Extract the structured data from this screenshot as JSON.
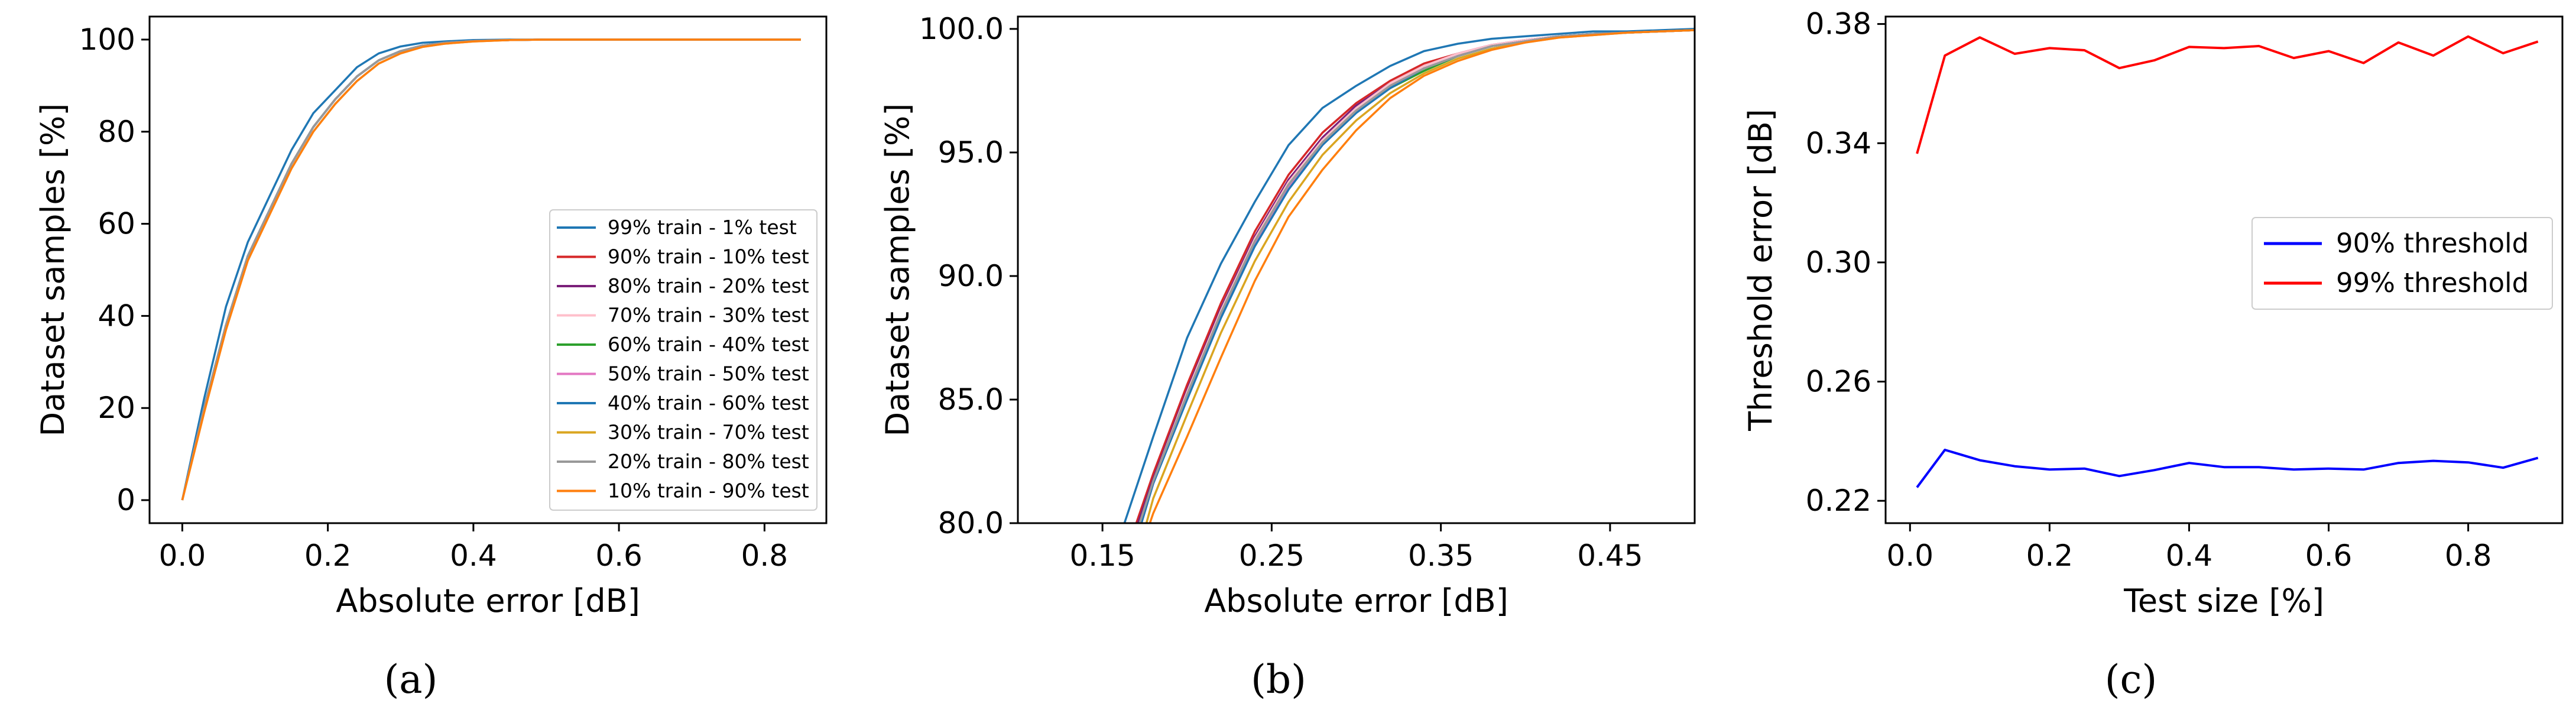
{
  "chart_data": [
    {
      "panel": "(a)",
      "type": "line",
      "xlabel": "Absolute error [dB]",
      "ylabel": "Dataset samples [%]",
      "xlim": [
        -0.045,
        0.885
      ],
      "ylim": [
        -5,
        105
      ],
      "xticks": [
        "0.0",
        "0.2",
        "0.4",
        "0.6",
        "0.8"
      ],
      "xtick_values": [
        0,
        0.2,
        0.4,
        0.6,
        0.8
      ],
      "yticks": [
        "0",
        "20",
        "40",
        "60",
        "80",
        "100"
      ],
      "ytick_values": [
        0,
        20,
        40,
        60,
        80,
        100
      ],
      "grid": false,
      "legend_position": "lower-right",
      "series": [
        {
          "name": "99% train - 1% test",
          "color": "#1f77b4",
          "x": [
            0,
            0.03,
            0.06,
            0.09,
            0.12,
            0.15,
            0.18,
            0.21,
            0.24,
            0.27,
            0.3,
            0.33,
            0.36,
            0.4,
            0.45,
            0.5,
            0.6,
            0.7,
            0.85
          ],
          "y": [
            0,
            22,
            42,
            56,
            66,
            76,
            84,
            89,
            94,
            97,
            98.5,
            99.3,
            99.6,
            99.9,
            100,
            100,
            100,
            100,
            100
          ]
        },
        {
          "name": "90% train - 10% test",
          "color": "#d62728",
          "x": [
            0,
            0.03,
            0.06,
            0.09,
            0.12,
            0.15,
            0.18,
            0.21,
            0.24,
            0.27,
            0.3,
            0.33,
            0.36,
            0.4,
            0.45,
            0.5,
            0.6,
            0.7,
            0.85
          ],
          "y": [
            0,
            20,
            38,
            53,
            63,
            73,
            81,
            87,
            92,
            95.5,
            97.5,
            98.7,
            99.3,
            99.7,
            99.9,
            100,
            100,
            100,
            100
          ]
        },
        {
          "name": "80% train - 20% test",
          "color": "#7b1f7a",
          "x": [
            0,
            0.03,
            0.06,
            0.09,
            0.12,
            0.15,
            0.18,
            0.21,
            0.24,
            0.27,
            0.3,
            0.33,
            0.36,
            0.4,
            0.45,
            0.5,
            0.6,
            0.7,
            0.85
          ],
          "y": [
            0,
            20,
            38,
            53,
            63,
            73,
            81,
            87,
            92,
            95.5,
            97.5,
            98.7,
            99.3,
            99.7,
            99.9,
            100,
            100,
            100,
            100
          ]
        },
        {
          "name": "70% train - 30% test",
          "color": "#ffc0cb",
          "x": [
            0,
            0.03,
            0.06,
            0.09,
            0.12,
            0.15,
            0.18,
            0.21,
            0.24,
            0.27,
            0.3,
            0.33,
            0.36,
            0.4,
            0.45,
            0.5,
            0.6,
            0.7,
            0.85
          ],
          "y": [
            0,
            20,
            38,
            53,
            63,
            73,
            81,
            87,
            92,
            95.5,
            97.5,
            98.7,
            99.3,
            99.7,
            99.9,
            100,
            100,
            100,
            100
          ]
        },
        {
          "name": "60% train - 40% test",
          "color": "#2ca02c",
          "x": [
            0,
            0.03,
            0.06,
            0.09,
            0.12,
            0.15,
            0.18,
            0.21,
            0.24,
            0.27,
            0.3,
            0.33,
            0.36,
            0.4,
            0.45,
            0.5,
            0.6,
            0.7,
            0.85
          ],
          "y": [
            0,
            20,
            38,
            53,
            63,
            73,
            81,
            87,
            92,
            95.5,
            97.5,
            98.7,
            99.3,
            99.7,
            99.9,
            100,
            100,
            100,
            100
          ]
        },
        {
          "name": "50% train - 50% test",
          "color": "#e377c2",
          "x": [
            0,
            0.03,
            0.06,
            0.09,
            0.12,
            0.15,
            0.18,
            0.21,
            0.24,
            0.27,
            0.3,
            0.33,
            0.36,
            0.4,
            0.45,
            0.5,
            0.6,
            0.7,
            0.85
          ],
          "y": [
            0,
            20,
            38,
            53,
            63,
            73,
            81,
            87,
            92,
            95.5,
            97.5,
            98.7,
            99.3,
            99.7,
            99.9,
            100,
            100,
            100,
            100
          ]
        },
        {
          "name": "40% train - 60% test",
          "color": "#1f77b4",
          "x": [
            0,
            0.03,
            0.06,
            0.09,
            0.12,
            0.15,
            0.18,
            0.21,
            0.24,
            0.27,
            0.3,
            0.33,
            0.36,
            0.4,
            0.45,
            0.5,
            0.6,
            0.7,
            0.85
          ],
          "y": [
            0,
            20,
            38,
            53,
            63,
            73,
            81,
            87,
            92,
            95.5,
            97.5,
            98.7,
            99.3,
            99.7,
            99.9,
            100,
            100,
            100,
            100
          ]
        },
        {
          "name": "30% train - 70% test",
          "color": "#daa520",
          "x": [
            0,
            0.03,
            0.06,
            0.09,
            0.12,
            0.15,
            0.18,
            0.21,
            0.24,
            0.27,
            0.3,
            0.33,
            0.36,
            0.4,
            0.45,
            0.5,
            0.6,
            0.7,
            0.85
          ],
          "y": [
            0,
            19,
            37,
            52,
            62,
            72,
            80,
            86,
            91,
            94.8,
            97,
            98.4,
            99.1,
            99.6,
            99.9,
            100,
            100,
            100,
            100
          ]
        },
        {
          "name": "20% train - 80% test",
          "color": "#999999",
          "x": [
            0,
            0.03,
            0.06,
            0.09,
            0.12,
            0.15,
            0.18,
            0.21,
            0.24,
            0.27,
            0.3,
            0.33,
            0.36,
            0.4,
            0.45,
            0.5,
            0.6,
            0.7,
            0.85
          ],
          "y": [
            0,
            20,
            38,
            53,
            63,
            73,
            81,
            87,
            92,
            95.5,
            97.5,
            98.7,
            99.3,
            99.7,
            99.9,
            100,
            100,
            100,
            100
          ]
        },
        {
          "name": "10% train - 90% test",
          "color": "#ff7f0e",
          "x": [
            0,
            0.03,
            0.06,
            0.09,
            0.12,
            0.15,
            0.18,
            0.21,
            0.24,
            0.27,
            0.3,
            0.33,
            0.36,
            0.4,
            0.45,
            0.5,
            0.6,
            0.7,
            0.85
          ],
          "y": [
            0,
            19,
            37,
            52,
            62,
            72,
            80,
            86,
            91,
            94.8,
            97,
            98.4,
            99.1,
            99.6,
            99.9,
            100,
            100,
            100,
            100
          ]
        }
      ]
    },
    {
      "panel": "(b)",
      "type": "line",
      "xlabel": "Absolute error [dB]",
      "ylabel": "Dataset samples [%]",
      "xlim": [
        0.1,
        0.5
      ],
      "ylim": [
        80,
        100.5
      ],
      "xticks": [
        "0.15",
        "0.25",
        "0.35",
        "0.45"
      ],
      "xtick_values": [
        0.15,
        0.25,
        0.35,
        0.45
      ],
      "yticks": [
        "80.0",
        "85.0",
        "90.0",
        "95.0",
        "100.0"
      ],
      "ytick_values": [
        80,
        85,
        90,
        95,
        100
      ],
      "grid": false,
      "series": [
        {
          "name": "99% train - 1% test",
          "color": "#1f77b4",
          "x": [
            0.163,
            0.18,
            0.2,
            0.22,
            0.24,
            0.26,
            0.28,
            0.3,
            0.32,
            0.34,
            0.36,
            0.38,
            0.4,
            0.42,
            0.44,
            0.46,
            0.48,
            0.5
          ],
          "y": [
            80,
            83.5,
            87.5,
            90.5,
            93,
            95.3,
            96.8,
            97.7,
            98.5,
            99.1,
            99.4,
            99.6,
            99.7,
            99.8,
            99.9,
            99.9,
            99.95,
            100
          ]
        },
        {
          "name": "90% train - 10% test",
          "color": "#d62728",
          "x": [
            0.17,
            0.18,
            0.2,
            0.22,
            0.24,
            0.26,
            0.28,
            0.3,
            0.32,
            0.34,
            0.36,
            0.38,
            0.4,
            0.42,
            0.44,
            0.46,
            0.48,
            0.5
          ],
          "y": [
            80,
            82,
            85.6,
            88.9,
            91.8,
            94.1,
            95.8,
            97,
            97.9,
            98.6,
            99,
            99.35,
            99.55,
            99.7,
            99.8,
            99.85,
            99.9,
            99.95
          ]
        },
        {
          "name": "80% train - 20% test",
          "color": "#7b1f7a",
          "x": [
            0.171,
            0.18,
            0.2,
            0.22,
            0.24,
            0.26,
            0.28,
            0.3,
            0.32,
            0.34,
            0.36,
            0.38,
            0.4,
            0.42,
            0.44,
            0.46,
            0.48,
            0.5
          ],
          "y": [
            80,
            81.8,
            85.4,
            88.7,
            91.6,
            93.9,
            95.6,
            96.9,
            97.8,
            98.5,
            99,
            99.35,
            99.55,
            99.7,
            99.8,
            99.85,
            99.9,
            99.95
          ]
        },
        {
          "name": "70% train - 30% test",
          "color": "#ffc0cb",
          "x": [
            0.172,
            0.18,
            0.2,
            0.22,
            0.24,
            0.26,
            0.28,
            0.3,
            0.32,
            0.34,
            0.36,
            0.38,
            0.4,
            0.42,
            0.44,
            0.46,
            0.48,
            0.5
          ],
          "y": [
            80,
            81.7,
            85.3,
            88.6,
            91.5,
            93.8,
            95.5,
            96.8,
            97.8,
            98.5,
            99,
            99.35,
            99.55,
            99.7,
            99.8,
            99.85,
            99.9,
            99.95
          ]
        },
        {
          "name": "60% train - 40% test",
          "color": "#2ca02c",
          "x": [
            0.172,
            0.18,
            0.2,
            0.22,
            0.24,
            0.26,
            0.28,
            0.3,
            0.32,
            0.34,
            0.36,
            0.38,
            0.4,
            0.42,
            0.44,
            0.46,
            0.48,
            0.5
          ],
          "y": [
            80,
            81.7,
            85.2,
            88.5,
            91.4,
            93.7,
            95.4,
            96.7,
            97.6,
            98.3,
            98.9,
            99.3,
            99.5,
            99.7,
            99.8,
            99.85,
            99.9,
            99.95
          ]
        },
        {
          "name": "50% train - 50% test",
          "color": "#e377c2",
          "x": [
            0.173,
            0.18,
            0.2,
            0.22,
            0.24,
            0.26,
            0.28,
            0.3,
            0.32,
            0.34,
            0.36,
            0.38,
            0.4,
            0.42,
            0.44,
            0.46,
            0.48,
            0.5
          ],
          "y": [
            80,
            81.6,
            85.1,
            88.4,
            91.3,
            93.6,
            95.3,
            96.7,
            97.7,
            98.4,
            98.9,
            99.3,
            99.5,
            99.7,
            99.8,
            99.85,
            99.9,
            99.95
          ]
        },
        {
          "name": "40% train - 60% test",
          "color": "#1f77b4",
          "x": [
            0.173,
            0.18,
            0.2,
            0.22,
            0.24,
            0.26,
            0.28,
            0.3,
            0.32,
            0.34,
            0.36,
            0.38,
            0.4,
            0.42,
            0.44,
            0.46,
            0.48,
            0.5
          ],
          "y": [
            80,
            81.6,
            85,
            88.3,
            91.2,
            93.5,
            95.3,
            96.6,
            97.6,
            98.4,
            98.9,
            99.3,
            99.5,
            99.7,
            99.8,
            99.85,
            99.9,
            99.95
          ]
        },
        {
          "name": "30% train - 70% test",
          "color": "#daa520",
          "x": [
            0.176,
            0.18,
            0.2,
            0.22,
            0.24,
            0.26,
            0.28,
            0.3,
            0.32,
            0.34,
            0.36,
            0.38,
            0.4,
            0.42,
            0.44,
            0.46,
            0.48,
            0.5
          ],
          "y": [
            80,
            81,
            84.4,
            87.7,
            90.6,
            93,
            94.9,
            96.3,
            97.4,
            98.2,
            98.8,
            99.2,
            99.45,
            99.65,
            99.75,
            99.85,
            99.9,
            99.95
          ]
        },
        {
          "name": "20% train - 80% test",
          "color": "#999999",
          "x": [
            0.172,
            0.18,
            0.2,
            0.22,
            0.24,
            0.26,
            0.28,
            0.3,
            0.32,
            0.34,
            0.36,
            0.38,
            0.4,
            0.42,
            0.44,
            0.46,
            0.48,
            0.5
          ],
          "y": [
            80,
            81.7,
            85.2,
            88.5,
            91.4,
            93.7,
            95.4,
            96.7,
            97.7,
            98.4,
            98.9,
            99.3,
            99.5,
            99.7,
            99.8,
            99.85,
            99.9,
            99.95
          ]
        },
        {
          "name": "10% train - 90% test",
          "color": "#ff7f0e",
          "x": [
            0.178,
            0.18,
            0.2,
            0.22,
            0.24,
            0.26,
            0.28,
            0.3,
            0.32,
            0.34,
            0.36,
            0.38,
            0.4,
            0.42,
            0.44,
            0.46,
            0.48,
            0.5
          ],
          "y": [
            80,
            80.4,
            83.5,
            86.7,
            89.8,
            92.4,
            94.3,
            95.9,
            97.2,
            98.1,
            98.7,
            99.15,
            99.45,
            99.65,
            99.75,
            99.85,
            99.9,
            99.95
          ]
        }
      ]
    },
    {
      "panel": "(c)",
      "type": "line",
      "xlabel": "Test size [%]",
      "ylabel": "Threshold error [dB]",
      "xlim": [
        -0.035,
        0.935
      ],
      "ylim": [
        0.2125,
        0.3825
      ],
      "xticks": [
        "0.0",
        "0.2",
        "0.4",
        "0.6",
        "0.8"
      ],
      "xtick_values": [
        0,
        0.2,
        0.4,
        0.6,
        0.8
      ],
      "yticks": [
        "0.22",
        "0.26",
        "0.30",
        "0.34",
        "0.38"
      ],
      "ytick_values": [
        0.22,
        0.26,
        0.3,
        0.34,
        0.38
      ],
      "grid": false,
      "legend_position": "center-right",
      "series": [
        {
          "name": "90% threshold",
          "color": "#0000ff",
          "x": [
            0.01,
            0.05,
            0.1,
            0.15,
            0.2,
            0.25,
            0.3,
            0.35,
            0.4,
            0.45,
            0.5,
            0.55,
            0.6,
            0.65,
            0.7,
            0.75,
            0.8,
            0.85,
            0.9
          ],
          "y": [
            0.2245,
            0.2371,
            0.2336,
            0.2316,
            0.2305,
            0.2308,
            0.2283,
            0.2303,
            0.2327,
            0.2313,
            0.2313,
            0.2305,
            0.2308,
            0.2305,
            0.2327,
            0.2334,
            0.2329,
            0.2311,
            0.2344
          ]
        },
        {
          "name": "99% threshold",
          "color": "#ff0000",
          "x": [
            0.01,
            0.05,
            0.1,
            0.15,
            0.2,
            0.25,
            0.3,
            0.35,
            0.4,
            0.45,
            0.5,
            0.55,
            0.6,
            0.65,
            0.7,
            0.75,
            0.8,
            0.85,
            0.9
          ],
          "y": [
            0.3365,
            0.3694,
            0.3755,
            0.37,
            0.3719,
            0.3712,
            0.3652,
            0.3678,
            0.3723,
            0.3719,
            0.3726,
            0.3686,
            0.3709,
            0.3669,
            0.3738,
            0.3694,
            0.3758,
            0.3702,
            0.3741
          ]
        }
      ]
    }
  ]
}
